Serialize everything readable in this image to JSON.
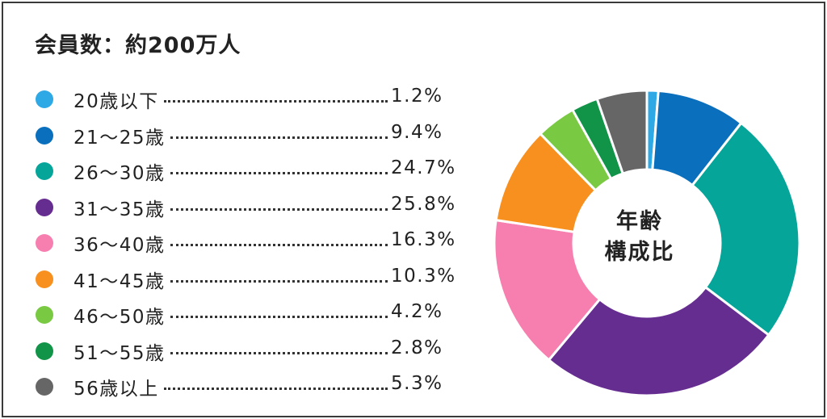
{
  "title": "会員数：約200万人",
  "center_label": {
    "line1": "年齢",
    "line2": "構成比"
  },
  "chart_data": {
    "type": "pie",
    "donut": true,
    "title": "会員数：約200万人",
    "center_text": "年齢構成比",
    "legend_position": "left",
    "slices": [
      {
        "label": "20歳以下",
        "value": 1.2,
        "display": "1.2%",
        "color": "#2fa8e6"
      },
      {
        "label": "21～25歳",
        "value": 9.4,
        "display": "9.4%",
        "color": "#0a6fbd"
      },
      {
        "label": "26～30歳",
        "value": 24.7,
        "display": "24.7%",
        "color": "#06a59a"
      },
      {
        "label": "31～35歳",
        "value": 25.8,
        "display": "25.8%",
        "color": "#662d91"
      },
      {
        "label": "36～40歳",
        "value": 16.3,
        "display": "16.3%",
        "color": "#f77fb0"
      },
      {
        "label": "41～45歳",
        "value": 10.3,
        "display": "10.3%",
        "color": "#f8901f"
      },
      {
        "label": "46～50歳",
        "value": 4.2,
        "display": "4.2%",
        "color": "#7ac943"
      },
      {
        "label": "51～55歳",
        "value": 2.8,
        "display": "2.8%",
        "color": "#119348"
      },
      {
        "label": "56歳以上",
        "value": 5.3,
        "display": "5.3%",
        "color": "#666666"
      }
    ]
  }
}
